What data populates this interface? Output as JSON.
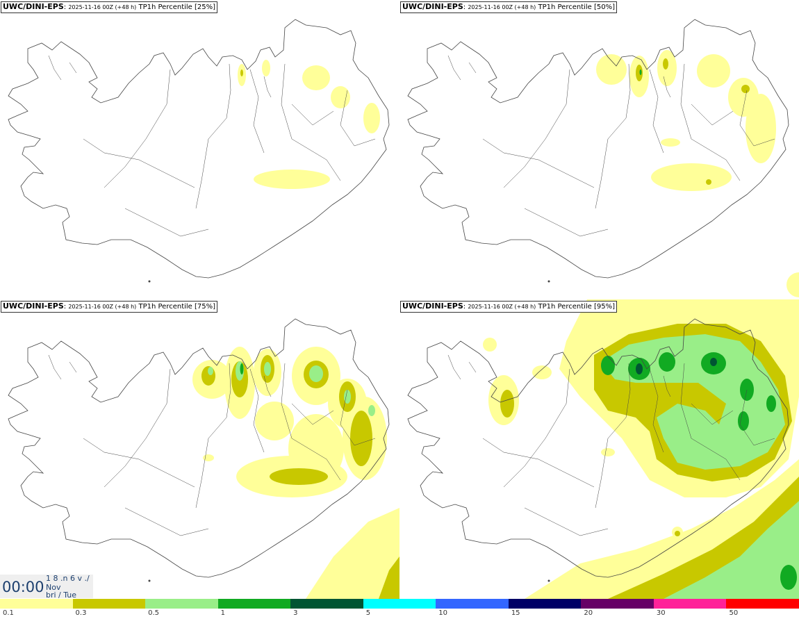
{
  "panels": [
    {
      "model": "UWC/DINI-EPS",
      "run": "2025-11-16 00Z (+48 h)",
      "param": "TP1h Percentile [25%]"
    },
    {
      "model": "UWC/DINI-EPS",
      "run": "2025-11-16 00Z (+48 h)",
      "param": "TP1h Percentile [50%]"
    },
    {
      "model": "UWC/DINI-EPS",
      "run": "2025-11-16 00Z (+48 h)",
      "param": "TP1h Percentile [75%]"
    },
    {
      "model": "UWC/DINI-EPS",
      "run": "2025-11-16 00Z (+48 h)",
      "param": "TP1h Percentile [95%]"
    }
  ],
  "valid_time": {
    "time": "00:00",
    "line1": "1 8 .n 6 v ./",
    "line2": "Nov",
    "line3": "bri / Tue"
  },
  "colorbar": {
    "colors": [
      "#ffff99",
      "#c8c800",
      "#99ee88",
      "#11aa22",
      "#005533",
      "#00ffff",
      "#3366ff",
      "#000066",
      "#660066",
      "#ff2299",
      "#ff0000"
    ],
    "labels": [
      "0.1",
      "0.3",
      "0.5",
      "1",
      "3",
      "5",
      "10",
      "15",
      "20",
      "30",
      "50"
    ]
  }
}
